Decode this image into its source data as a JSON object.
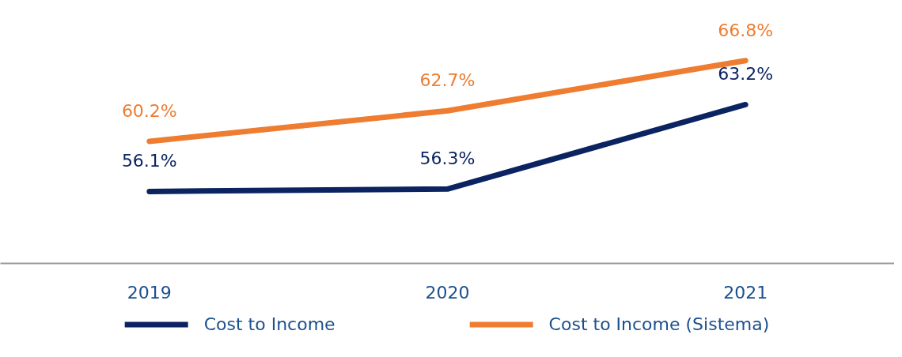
{
  "chart_data": {
    "type": "line",
    "categories": [
      "2019",
      "2020",
      "2021"
    ],
    "series": [
      {
        "name": "Cost to Income",
        "color": "#0b2461",
        "values": [
          56.1,
          56.3,
          63.2
        ],
        "value_labels": [
          "56.1%",
          "56.3%",
          "63.2%"
        ]
      },
      {
        "name": "Cost to Income (Sistema)",
        "color": "#ee7d31",
        "values": [
          60.2,
          62.7,
          66.8
        ],
        "value_labels": [
          "60.2%",
          "62.7%",
          "66.8%"
        ]
      }
    ],
    "legend": "bottom",
    "tick_labels": "x",
    "line_style": "solid"
  }
}
